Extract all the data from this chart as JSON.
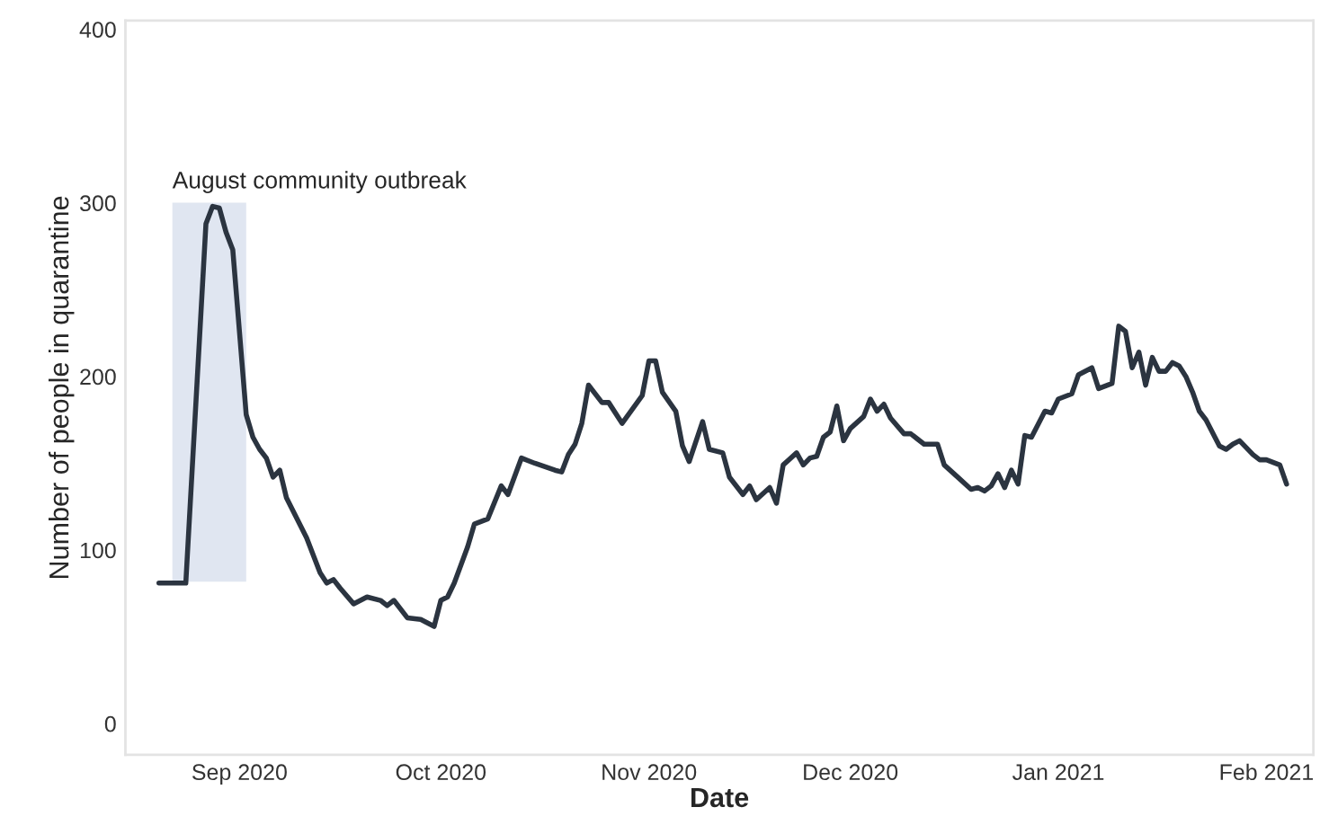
{
  "chart_data": {
    "type": "line",
    "xlabel": "Date",
    "ylabel": "Number of people in quarantine",
    "x": [
      "2020-08-20",
      "2020-08-24",
      "2020-08-27",
      "2020-08-28",
      "2020-08-29",
      "2020-08-30",
      "2020-08-31",
      "2020-09-02",
      "2020-09-03",
      "2020-09-04",
      "2020-09-05",
      "2020-09-06",
      "2020-09-07",
      "2020-09-08",
      "2020-09-11",
      "2020-09-13",
      "2020-09-14",
      "2020-09-15",
      "2020-09-16",
      "2020-09-18",
      "2020-09-20",
      "2020-09-22",
      "2020-09-23",
      "2020-09-24",
      "2020-09-26",
      "2020-09-28",
      "2020-09-30",
      "2020-10-01",
      "2020-10-02",
      "2020-10-03",
      "2020-10-05",
      "2020-10-06",
      "2020-10-08",
      "2020-10-10",
      "2020-10-11",
      "2020-10-13",
      "2020-10-15",
      "2020-10-18",
      "2020-10-19",
      "2020-10-20",
      "2020-10-21",
      "2020-10-22",
      "2020-10-23",
      "2020-10-25",
      "2020-10-26",
      "2020-10-28",
      "2020-10-31",
      "2020-11-01",
      "2020-11-02",
      "2020-11-03",
      "2020-11-05",
      "2020-11-06",
      "2020-11-07",
      "2020-11-09",
      "2020-11-10",
      "2020-11-12",
      "2020-11-13",
      "2020-11-15",
      "2020-11-16",
      "2020-11-17",
      "2020-11-19",
      "2020-11-20",
      "2020-11-21",
      "2020-11-23",
      "2020-11-24",
      "2020-11-25",
      "2020-11-26",
      "2020-11-27",
      "2020-11-28",
      "2020-11-29",
      "2020-11-30",
      "2020-12-01",
      "2020-12-03",
      "2020-12-04",
      "2020-12-05",
      "2020-12-06",
      "2020-12-07",
      "2020-12-09",
      "2020-12-10",
      "2020-12-12",
      "2020-12-14",
      "2020-12-15",
      "2020-12-17",
      "2020-12-19",
      "2020-12-20",
      "2020-12-21",
      "2020-12-22",
      "2020-12-23",
      "2020-12-24",
      "2020-12-25",
      "2020-12-26",
      "2020-12-27",
      "2020-12-28",
      "2020-12-30",
      "2020-12-31",
      "2021-01-01",
      "2021-01-03",
      "2021-01-04",
      "2021-01-06",
      "2021-01-07",
      "2021-01-09",
      "2021-01-10",
      "2021-01-11",
      "2021-01-12",
      "2021-01-13",
      "2021-01-14",
      "2021-01-15",
      "2021-01-16",
      "2021-01-17",
      "2021-01-18",
      "2021-01-19",
      "2021-01-20",
      "2021-01-21",
      "2021-01-22",
      "2021-01-23",
      "2021-01-25",
      "2021-01-26",
      "2021-01-27",
      "2021-01-28",
      "2021-01-30",
      "2021-01-31",
      "2021-02-01",
      "2021-02-03",
      "2021-02-04"
    ],
    "series": [
      {
        "color": "#2b3440",
        "values": [
          81,
          81,
          288,
          298,
          297,
          283,
          273,
          178,
          165,
          158,
          153,
          142,
          146,
          130,
          107,
          87,
          81,
          83,
          78,
          69,
          73,
          71,
          68,
          71,
          61,
          60,
          56,
          71,
          73,
          81,
          102,
          115,
          118,
          137,
          132,
          153,
          150,
          146,
          145,
          155,
          161,
          173,
          195,
          185,
          185,
          173,
          189,
          209,
          209,
          191,
          180,
          160,
          151,
          174,
          158,
          156,
          142,
          132,
          137,
          129,
          136,
          127,
          149,
          156,
          149,
          153,
          154,
          165,
          168,
          183,
          163,
          170,
          177,
          187,
          180,
          184,
          176,
          167,
          167,
          161,
          161,
          149,
          142,
          135,
          136,
          134,
          137,
          144,
          136,
          146,
          138,
          166,
          165,
          180,
          179,
          187,
          190,
          201,
          205,
          193,
          196,
          229,
          226,
          205,
          214,
          195,
          211,
          203,
          203,
          208,
          206,
          200,
          191,
          180,
          175,
          160,
          158,
          161,
          163,
          155,
          152,
          152,
          149,
          138
        ]
      }
    ],
    "xlim": [
      "2020-08-15",
      "2021-02-08"
    ],
    "xticks": [
      {
        "value": "2020-09-01",
        "label": "Sep 2020"
      },
      {
        "value": "2020-10-01",
        "label": "Oct 2020"
      },
      {
        "value": "2020-11-01",
        "label": "Nov 2020"
      },
      {
        "value": "2020-12-01",
        "label": "Dec 2020"
      },
      {
        "value": "2021-01-01",
        "label": "Jan 2021"
      },
      {
        "value": "2021-02-01",
        "label": "Feb 2021"
      }
    ],
    "ylim": [
      -18,
      405
    ],
    "yticks": [
      0,
      100,
      200,
      300,
      400
    ],
    "bands": [
      {
        "axis": "x",
        "from": "2020-08-22",
        "to": "2020-09-02",
        "label": "August community outbreak",
        "color": "#dde3f0"
      }
    ],
    "grid": false,
    "legend": false,
    "marker": "none",
    "line_style": "solid"
  }
}
